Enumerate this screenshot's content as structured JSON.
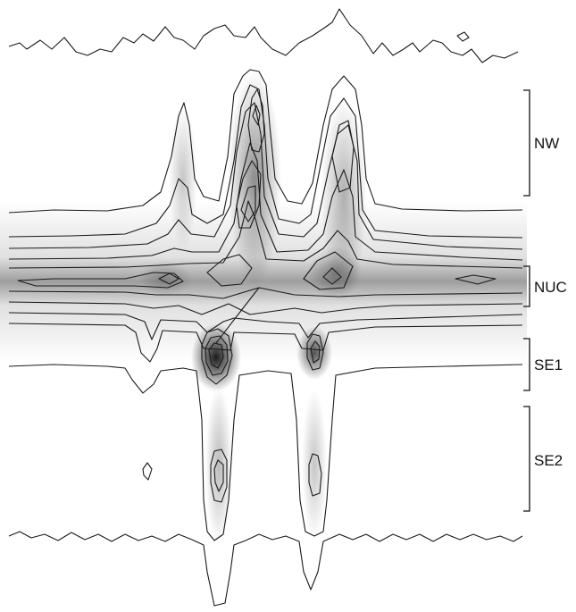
{
  "figure": {
    "regions": [
      {
        "id": "nw",
        "label": "NW"
      },
      {
        "id": "nuc",
        "label": "NUC"
      },
      {
        "id": "se1",
        "label": "SE1"
      },
      {
        "id": "se2",
        "label": "SE2"
      }
    ],
    "colors": {
      "contour": "#1a1a1a",
      "background": "#ffffff",
      "density": "#000000"
    }
  }
}
